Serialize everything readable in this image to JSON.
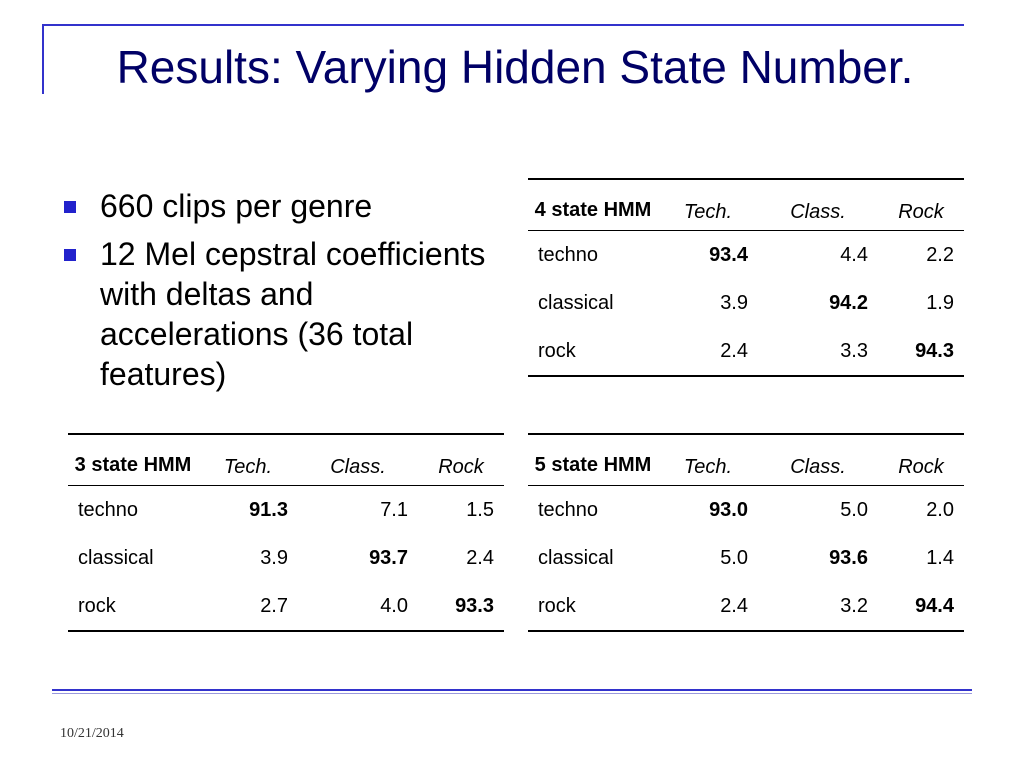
{
  "slide": {
    "title": "Results: Varying Hidden State Number.",
    "date": "10/21/2014"
  },
  "bullets": [
    "660 clips per genre",
    "12 Mel cepstral coefficients with deltas and accelerations (36 total features)"
  ],
  "tables": {
    "four_state": {
      "model_label": "4 state HMM",
      "columns": [
        "Tech.",
        "Class.",
        "Rock"
      ],
      "rows": [
        {
          "label": "techno",
          "values": [
            "93.4",
            "4.4",
            "2.2"
          ]
        },
        {
          "label": "classical",
          "values": [
            "3.9",
            "94.2",
            "1.9"
          ]
        },
        {
          "label": "rock",
          "values": [
            "2.4",
            "3.3",
            "94.3"
          ]
        }
      ]
    },
    "three_state": {
      "model_label": "3 state HMM",
      "columns": [
        "Tech.",
        "Class.",
        "Rock"
      ],
      "rows": [
        {
          "label": "techno",
          "values": [
            "91.3",
            "7.1",
            "1.5"
          ]
        },
        {
          "label": "classical",
          "values": [
            "3.9",
            "93.7",
            "2.4"
          ]
        },
        {
          "label": "rock",
          "values": [
            "2.7",
            "4.0",
            "93.3"
          ]
        }
      ]
    },
    "five_state": {
      "model_label": "5 state HMM",
      "columns": [
        "Tech.",
        "Class.",
        "Rock"
      ],
      "rows": [
        {
          "label": "techno",
          "values": [
            "93.0",
            "5.0",
            "2.0"
          ]
        },
        {
          "label": "classical",
          "values": [
            "5.0",
            "93.6",
            "1.4"
          ]
        },
        {
          "label": "rock",
          "values": [
            "2.4",
            "3.2",
            "94.4"
          ]
        }
      ]
    }
  },
  "colors": {
    "title": "#000066",
    "accent_line": "#3333cc",
    "bullet": "#2222cc"
  }
}
